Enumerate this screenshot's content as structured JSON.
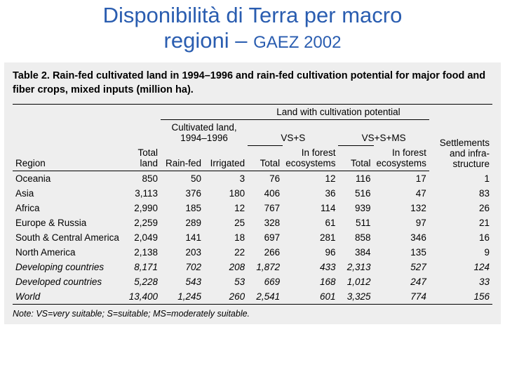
{
  "slide": {
    "title_line1": "Disponibilità di Terra per macro",
    "title_line2_main": "regioni – ",
    "title_line2_sub": "GAEZ 2002",
    "title_color": "#2a5db0",
    "title_fontsize_main": 31,
    "title_fontsize_sub": 24
  },
  "table": {
    "background_color": "#eeeeee",
    "caption": "Table 2. Rain-fed cultivated land in 1994–1996 and rain-fed cultivation potential for major food and fiber crops, mixed inputs (million ha).",
    "note": "Note: VS=very suitable; S=suitable; MS=moderately suitable.",
    "header": {
      "region": "Region",
      "total_land": "Total land",
      "cultivated_span": "Cultivated land, 1994–1996",
      "rain_fed": "Rain-fed",
      "irrigated": "Irrigated",
      "potential_span": "Land with cultivation potential",
      "vss": "VS+S",
      "vssms": "VS+S+MS",
      "sub_total": "Total",
      "sub_forest": "In forest ecosystems",
      "settlements": "Settlements and infra-structure"
    },
    "rows": [
      {
        "region": "Oceania",
        "total": "850",
        "rainfed": "50",
        "irrig": "3",
        "vss_t": "76",
        "vss_f": "12",
        "vssms_t": "116",
        "vssms_f": "17",
        "settle": "1",
        "italic": false
      },
      {
        "region": "Asia",
        "total": "3,113",
        "rainfed": "376",
        "irrig": "180",
        "vss_t": "406",
        "vss_f": "36",
        "vssms_t": "516",
        "vssms_f": "47",
        "settle": "83",
        "italic": false
      },
      {
        "region": "Africa",
        "total": "2,990",
        "rainfed": "185",
        "irrig": "12",
        "vss_t": "767",
        "vss_f": "114",
        "vssms_t": "939",
        "vssms_f": "132",
        "settle": "26",
        "italic": false
      },
      {
        "region": "Europe & Russia",
        "total": "2,259",
        "rainfed": "289",
        "irrig": "25",
        "vss_t": "328",
        "vss_f": "61",
        "vssms_t": "511",
        "vssms_f": "97",
        "settle": "21",
        "italic": false
      },
      {
        "region": "South & Central America",
        "total": "2,049",
        "rainfed": "141",
        "irrig": "18",
        "vss_t": "697",
        "vss_f": "281",
        "vssms_t": "858",
        "vssms_f": "346",
        "settle": "16",
        "italic": false
      },
      {
        "region": "North America",
        "total": "2,138",
        "rainfed": "203",
        "irrig": "22",
        "vss_t": "266",
        "vss_f": "96",
        "vssms_t": "384",
        "vssms_f": "135",
        "settle": "9",
        "italic": false
      },
      {
        "region": "Developing countries",
        "total": "8,171",
        "rainfed": "702",
        "irrig": "208",
        "vss_t": "1,872",
        "vss_f": "433",
        "vssms_t": "2,313",
        "vssms_f": "527",
        "settle": "124",
        "italic": true
      },
      {
        "region": "Developed countries",
        "total": "5,228",
        "rainfed": "543",
        "irrig": "53",
        "vss_t": "669",
        "vss_f": "168",
        "vssms_t": "1,012",
        "vssms_f": "247",
        "settle": "33",
        "italic": true
      },
      {
        "region": "World",
        "total": "13,400",
        "rainfed": "1,245",
        "irrig": "260",
        "vss_t": "2,541",
        "vss_f": "601",
        "vssms_t": "3,325",
        "vssms_f": "774",
        "settle": "156",
        "italic": true
      }
    ]
  }
}
